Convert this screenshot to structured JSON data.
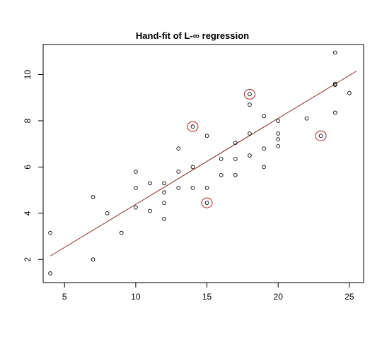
{
  "chart_data": {
    "type": "scatter",
    "title": "Hand-fit of L-∞ regression",
    "xlabel": "",
    "ylabel": "",
    "xlim": [
      3.5,
      26
    ],
    "ylim": [
      1,
      11.3
    ],
    "xticks": [
      5,
      10,
      15,
      20,
      25
    ],
    "yticks": [
      2,
      4,
      6,
      8,
      10
    ],
    "grid": false,
    "legend": "none",
    "points": [
      {
        "x": 4,
        "y": 3.15
      },
      {
        "x": 4,
        "y": 1.4
      },
      {
        "x": 7,
        "y": 4.7
      },
      {
        "x": 7,
        "y": 2.0
      },
      {
        "x": 8,
        "y": 4.0
      },
      {
        "x": 9,
        "y": 3.15
      },
      {
        "x": 10,
        "y": 5.8
      },
      {
        "x": 10,
        "y": 5.1
      },
      {
        "x": 10,
        "y": 4.25
      },
      {
        "x": 11,
        "y": 5.3
      },
      {
        "x": 11,
        "y": 4.1
      },
      {
        "x": 12,
        "y": 5.3
      },
      {
        "x": 12,
        "y": 4.9
      },
      {
        "x": 12,
        "y": 4.45
      },
      {
        "x": 12,
        "y": 3.75
      },
      {
        "x": 13,
        "y": 6.8
      },
      {
        "x": 13,
        "y": 5.8
      },
      {
        "x": 13,
        "y": 5.1
      },
      {
        "x": 14,
        "y": 7.75
      },
      {
        "x": 14,
        "y": 6.0
      },
      {
        "x": 14,
        "y": 5.1
      },
      {
        "x": 15,
        "y": 7.35
      },
      {
        "x": 15,
        "y": 5.1
      },
      {
        "x": 15,
        "y": 4.45
      },
      {
        "x": 16,
        "y": 6.35
      },
      {
        "x": 16,
        "y": 5.65
      },
      {
        "x": 17,
        "y": 7.05
      },
      {
        "x": 17,
        "y": 6.35
      },
      {
        "x": 17,
        "y": 5.65
      },
      {
        "x": 18,
        "y": 9.15
      },
      {
        "x": 18,
        "y": 8.7
      },
      {
        "x": 18,
        "y": 7.45
      },
      {
        "x": 18,
        "y": 6.5
      },
      {
        "x": 19,
        "y": 8.2
      },
      {
        "x": 19,
        "y": 6.8
      },
      {
        "x": 19,
        "y": 6.0
      },
      {
        "x": 20,
        "y": 8.0
      },
      {
        "x": 20,
        "y": 7.45
      },
      {
        "x": 20,
        "y": 7.2
      },
      {
        "x": 20,
        "y": 6.9
      },
      {
        "x": 22,
        "y": 8.1
      },
      {
        "x": 23,
        "y": 7.35
      },
      {
        "x": 24,
        "y": 10.95
      },
      {
        "x": 24,
        "y": 9.6
      },
      {
        "x": 24,
        "y": 9.55
      },
      {
        "x": 24,
        "y": 8.35
      },
      {
        "x": 25,
        "y": 9.2
      }
    ],
    "highlighted_points": [
      {
        "x": 14,
        "y": 7.75
      },
      {
        "x": 15,
        "y": 4.45
      },
      {
        "x": 18,
        "y": 9.15
      },
      {
        "x": 23,
        "y": 7.35
      }
    ],
    "fit_line": {
      "x": [
        4,
        25.5
      ],
      "y": [
        2.15,
        10.15
      ]
    },
    "colors": {
      "points": "#000000",
      "highlight": "#b22222",
      "fit_line": "#8b2b2b"
    }
  }
}
